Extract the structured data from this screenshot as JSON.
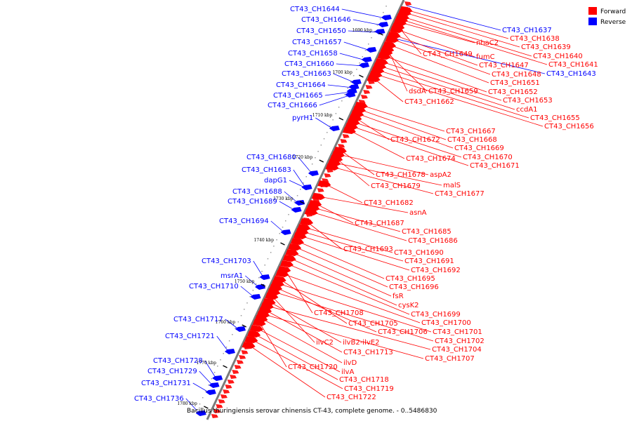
{
  "caption": "Bacillus thuringiensis serovar chinensis CT-43, complete genome. - 0..5486830",
  "legend": {
    "items": [
      {
        "label": "Forward",
        "color": "#ff0000"
      },
      {
        "label": "Reverse",
        "color": "#0000ff"
      }
    ]
  },
  "colors": {
    "forward": "#ff0000",
    "reverse": "#0000ff",
    "axis": "#808080"
  },
  "ticks": [
    "1690 kbp",
    "1700 kbp",
    "1710 kbp",
    "1720 kbp",
    "1730 kbp",
    "1740 kbp",
    "1750 kbp",
    "1760 kbp",
    "1770 kbp",
    "1780 kbp"
  ],
  "reverse_genes": [
    "CT43_CH1644",
    "CT43_CH1646",
    "CT43_CH1650",
    "CT43_CH1657",
    "CT43_CH1658",
    "CT43_CH1660",
    "CT43_CH1663",
    "CT43_CH1664",
    "CT43_CH1665",
    "CT43_CH1666",
    "pyrH1",
    "CT43_CH1680",
    "CT43_CH1683",
    "dapG1",
    "CT43_CH1688",
    "CT43_CH1689",
    "CT43_CH1694",
    "CT43_CH1703",
    "msrA1",
    "CT43_CH1710",
    "CT43_CH1717",
    "CT43_CH1721",
    "CT43_CH1728",
    "CT43_CH1729",
    "CT43_CH1731",
    "CT43_CH1736",
    "CT43_CH1637",
    "CT43_CH1643"
  ],
  "forward_genes": [
    "CT43_CH1638",
    "CT43_CH1639",
    "CT43_CH1640",
    "CT43_CH1641",
    "nhaC2",
    "CT43_CH1649",
    "fumC",
    "CT43_CH1647",
    "CT43_CH1648",
    "CT43_CH1651",
    "dsdA",
    "CT43_CH1659",
    "CT43_CH1652",
    "CT43_CH1653",
    "ccdA1",
    "CT43_CH1655",
    "CT43_CH1656",
    "CT43_CH1662",
    "CT43_CH1667",
    "CT43_CH1668",
    "CT43_CH1669",
    "CT43_CH1672",
    "CT43_CH1670",
    "CT43_CH1671",
    "CT43_CH1674",
    "CT43_CH1678",
    "aspA2",
    "CT43_CH1679",
    "malS",
    "CT43_CH1677",
    "CT43_CH1682",
    "asnA",
    "CT43_CH1687",
    "CT43_CH1685",
    "CT43_CH1686",
    "CT43_CH1693",
    "CT43_CH1690",
    "CT43_CH1691",
    "CT43_CH1692",
    "CT43_CH1695",
    "CT43_CH1696",
    "fsR",
    "cysK2",
    "CT43_CH1699",
    "CT43_CH1708",
    "CT43_CH1700",
    "CT43_CH1705",
    "CT43_CH1701",
    "CT43_CH1706",
    "CT43_CH1702",
    "ilvC2",
    "ilvB2-ilvE2",
    "CT43_CH1704",
    "CT43_CH1713",
    "CT43_CH1707",
    "ilvD",
    "CT43_CH1720",
    "ilvA",
    "CT43_CH1718",
    "CT43_CH1719",
    "CT43_CH1722"
  ]
}
